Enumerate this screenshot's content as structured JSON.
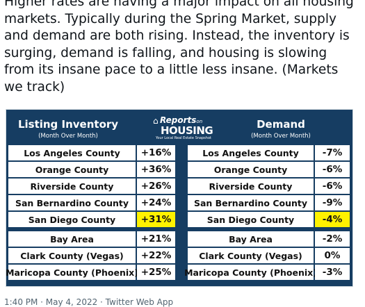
{
  "tweet": {
    "text": "Higher rates are having a major impact on all housing markets. Typically during the Spring Market, supply and demand are both rising. Instead, the inventory is surging, demand is falling, and housing is slowing from its insane pace to a little less insane. (Markets we track)",
    "timestamp": "1:40 PM · May 4, 2022 · Twitter Web App"
  },
  "table": {
    "left_title": "Listing Inventory",
    "left_subtitle": "(Month Over Month)",
    "right_title": "Demand",
    "right_subtitle": "(Month Over Month)",
    "logo": {
      "line1": "Reports",
      "line1_suffix": "on",
      "line2": "HOUSING",
      "tagline": "Your Local Real Estate Snapshot"
    },
    "highlight_color": "#fff200",
    "rows": [
      {
        "inv_name": "Los Angeles County",
        "inv_value": "+16%",
        "dem_name": "Los Angeles County",
        "dem_value": "-7%",
        "highlight": false
      },
      {
        "inv_name": "Orange County",
        "inv_value": "+36%",
        "dem_name": "Orange County",
        "dem_value": "-6%",
        "highlight": false
      },
      {
        "inv_name": "Riverside County",
        "inv_value": "+26%",
        "dem_name": "Riverside County",
        "dem_value": "-6%",
        "highlight": false
      },
      {
        "inv_name": "San Bernardino County",
        "inv_value": "+24%",
        "dem_name": "San Bernardino County",
        "dem_value": "-9%",
        "highlight": false
      },
      {
        "inv_name": "San Diego County",
        "inv_value": "+31%",
        "dem_name": "San Diego County",
        "dem_value": "-4%",
        "highlight": true
      },
      {
        "inv_name": "Bay Area",
        "inv_value": "+21%",
        "dem_name": "Bay Area",
        "dem_value": "-2%",
        "highlight": false
      },
      {
        "inv_name": "Clark County (Vegas)",
        "inv_value": "+22%",
        "dem_name": "Clark County (Vegas)",
        "dem_value": "0%",
        "highlight": false
      },
      {
        "inv_name": "Maricopa County (Phoenix)",
        "inv_value": "+25%",
        "dem_name": "Maricopa County (Phoenix)",
        "dem_value": "-3%",
        "highlight": false
      }
    ]
  }
}
